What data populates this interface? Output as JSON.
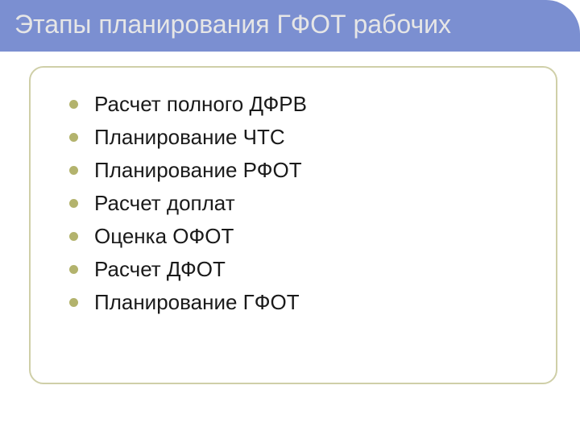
{
  "slide": {
    "title": "Этапы планирования ГФОТ рабочих",
    "title_color": "#e6e6e6",
    "title_bg": "#7b8fd1",
    "title_fontsize": 32,
    "content_border_color": "#cfcfa8",
    "content_border_radius": 18,
    "bullet_color": "#b3b36d",
    "bullet_text_color": "#1a1a1a",
    "bullet_fontsize": 26,
    "bullets": [
      "Расчет полного ДФРВ",
      "Планирование ЧТС",
      "Планирование РФОТ",
      "Расчет доплат",
      "Оценка ОФОТ",
      "Расчет ДФОТ",
      "Планирование ГФОТ"
    ]
  }
}
